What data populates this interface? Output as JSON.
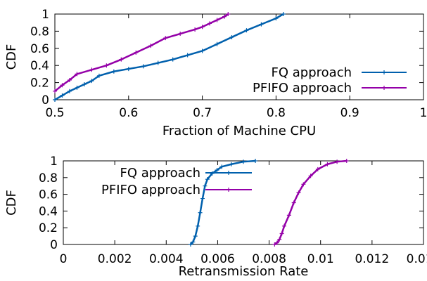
{
  "chart_data": [
    {
      "type": "line",
      "xlabel": "Fraction of Machine CPU",
      "ylabel": "CDF",
      "xlim": [
        0.5,
        1.0
      ],
      "ylim": [
        0,
        1
      ],
      "xticks": [
        "0.5",
        "0.6",
        "0.7",
        "0.8",
        "0.9",
        "1"
      ],
      "yticks": [
        "0",
        "0.2",
        "0.4",
        "0.6",
        "0.8",
        "1"
      ],
      "grid": false,
      "legend_position": "bottom-right",
      "series": [
        {
          "name": "FQ approach",
          "color": "#0060ad",
          "x": [
            0.5,
            0.51,
            0.52,
            0.53,
            0.54,
            0.55,
            0.56,
            0.58,
            0.6,
            0.62,
            0.64,
            0.66,
            0.68,
            0.7,
            0.72,
            0.74,
            0.76,
            0.78,
            0.8,
            0.81
          ],
          "y": [
            0.0,
            0.05,
            0.1,
            0.14,
            0.18,
            0.22,
            0.28,
            0.33,
            0.36,
            0.39,
            0.43,
            0.47,
            0.52,
            0.57,
            0.65,
            0.73,
            0.81,
            0.88,
            0.95,
            1.0
          ]
        },
        {
          "name": "PFIFO approach",
          "color": "#9400a8",
          "x": [
            0.5,
            0.51,
            0.52,
            0.53,
            0.55,
            0.57,
            0.59,
            0.61,
            0.63,
            0.65,
            0.67,
            0.69,
            0.7,
            0.71,
            0.72,
            0.73,
            0.735
          ],
          "y": [
            0.1,
            0.17,
            0.23,
            0.3,
            0.35,
            0.4,
            0.47,
            0.55,
            0.63,
            0.72,
            0.77,
            0.82,
            0.85,
            0.89,
            0.93,
            0.97,
            1.0
          ]
        }
      ]
    },
    {
      "type": "line",
      "xlabel": "Retransmission Rate",
      "ylabel": "CDF",
      "xlim": [
        0,
        0.015
      ],
      "ylim": [
        0,
        1
      ],
      "xticks": [
        "0",
        "0.002",
        "0.004",
        "0.006",
        "0.008",
        "0.01",
        "0.012",
        "0.014"
      ],
      "yticks": [
        "0",
        "0.2",
        "0.4",
        "0.6",
        "0.8",
        "1"
      ],
      "grid": false,
      "legend_position": "top-left",
      "series": [
        {
          "name": "FQ approach",
          "color": "#0060ad",
          "x": [
            0.0053,
            0.0054,
            0.0055,
            0.0056,
            0.0057,
            0.0058,
            0.0059,
            0.006,
            0.0062,
            0.0064,
            0.0066,
            0.007,
            0.0075,
            0.008
          ],
          "y": [
            0.0,
            0.03,
            0.1,
            0.22,
            0.38,
            0.55,
            0.7,
            0.78,
            0.85,
            0.89,
            0.93,
            0.96,
            0.99,
            1.0
          ]
        },
        {
          "name": "PFIFO approach",
          "color": "#9400a8",
          "x": [
            0.0088,
            0.0089,
            0.009,
            0.0091,
            0.0092,
            0.0094,
            0.0096,
            0.0098,
            0.01,
            0.0103,
            0.0106,
            0.011,
            0.0114,
            0.0118
          ],
          "y": [
            0.0,
            0.02,
            0.06,
            0.13,
            0.22,
            0.35,
            0.5,
            0.62,
            0.72,
            0.82,
            0.9,
            0.96,
            0.99,
            1.0
          ]
        }
      ]
    }
  ]
}
